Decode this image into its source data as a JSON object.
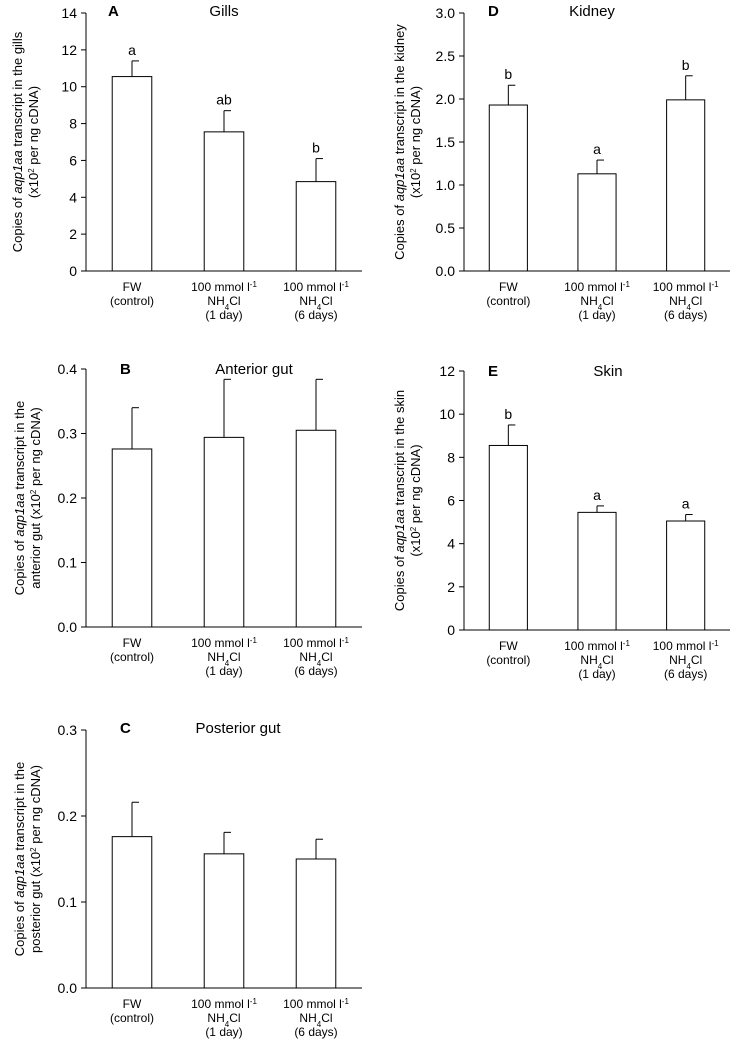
{
  "chart_data": [
    {
      "panel": "A",
      "type": "bar",
      "title": "Gills",
      "ylabel_lines": [
        [
          {
            "t": "Copies of "
          },
          {
            "t": "aqp1aa",
            "i": true
          },
          {
            "t": "  transcript in the gills"
          }
        ],
        [
          {
            "t": "(x10"
          },
          {
            "t": "2",
            "sup": true
          },
          {
            "t": "  per ng cDNA)"
          }
        ]
      ],
      "categories": [
        [
          [
            {
              "t": "FW"
            }
          ],
          [
            {
              "t": "(control)"
            }
          ]
        ],
        [
          [
            {
              "t": "100 mmol l"
            },
            {
              "t": "-1",
              "sup": true
            }
          ],
          [
            {
              "t": "NH"
            },
            {
              "t": "4",
              "sub": true
            },
            {
              "t": "Cl"
            }
          ],
          [
            {
              "t": "(1 day)"
            }
          ]
        ],
        [
          [
            {
              "t": "100 mmol l"
            },
            {
              "t": "-1",
              "sup": true
            }
          ],
          [
            {
              "t": "NH"
            },
            {
              "t": "4",
              "sub": true
            },
            {
              "t": "Cl"
            }
          ],
          [
            {
              "t": "(6 days)"
            }
          ]
        ]
      ],
      "values": [
        10.55,
        7.55,
        4.85
      ],
      "errors": [
        0.85,
        1.15,
        1.25
      ],
      "significance": [
        "a",
        "ab",
        "b"
      ],
      "ylim": [
        0,
        14
      ],
      "yticks": [
        "0",
        "2",
        "4",
        "6",
        "8",
        "10",
        "12",
        "14"
      ]
    },
    {
      "panel": "D",
      "type": "bar",
      "title": "Kidney",
      "ylabel_lines": [
        [
          {
            "t": "Copies of "
          },
          {
            "t": "aqp1aa",
            "i": true
          },
          {
            "t": "  transcript in the kidney"
          }
        ],
        [
          {
            "t": "(x10"
          },
          {
            "t": "2",
            "sup": true
          },
          {
            "t": "  per ng cDNA)"
          }
        ]
      ],
      "categories": [
        [
          [
            {
              "t": "FW"
            }
          ],
          [
            {
              "t": "(control)"
            }
          ]
        ],
        [
          [
            {
              "t": "100 mmol l"
            },
            {
              "t": "-1",
              "sup": true
            }
          ],
          [
            {
              "t": "NH"
            },
            {
              "t": "4",
              "sub": true
            },
            {
              "t": "Cl"
            }
          ],
          [
            {
              "t": "(1 day)"
            }
          ]
        ],
        [
          [
            {
              "t": "100 mmol l"
            },
            {
              "t": "-1",
              "sup": true
            }
          ],
          [
            {
              "t": "NH"
            },
            {
              "t": "4",
              "sub": true
            },
            {
              "t": "Cl"
            }
          ],
          [
            {
              "t": "(6 days)"
            }
          ]
        ]
      ],
      "values": [
        1.93,
        1.13,
        1.99
      ],
      "errors": [
        0.23,
        0.16,
        0.28
      ],
      "significance": [
        "b",
        "a",
        "b"
      ],
      "ylim": [
        0,
        3.0
      ],
      "yticks": [
        "0.0",
        "0.5",
        "1.0",
        "1.5",
        "2.0",
        "2.5",
        "3.0"
      ]
    },
    {
      "panel": "B",
      "type": "bar",
      "title": "Anterior gut",
      "ylabel_lines": [
        [
          {
            "t": "Copies of "
          },
          {
            "t": "aqp1aa",
            "i": true
          },
          {
            "t": "  transcript in the"
          }
        ],
        [
          {
            "t": "anterior gut  (x10"
          },
          {
            "t": "2",
            "sup": true
          },
          {
            "t": "  per ng cDNA)"
          }
        ]
      ],
      "categories": [
        [
          [
            {
              "t": "FW"
            }
          ],
          [
            {
              "t": "(control)"
            }
          ]
        ],
        [
          [
            {
              "t": "100 mmol l"
            },
            {
              "t": "-1",
              "sup": true
            }
          ],
          [
            {
              "t": "NH"
            },
            {
              "t": "4",
              "sub": true
            },
            {
              "t": "Cl"
            }
          ],
          [
            {
              "t": "(1 day)"
            }
          ]
        ],
        [
          [
            {
              "t": "100 mmol l"
            },
            {
              "t": "-1",
              "sup": true
            }
          ],
          [
            {
              "t": "NH"
            },
            {
              "t": "4",
              "sub": true
            },
            {
              "t": "Cl"
            }
          ],
          [
            {
              "t": "(6 days)"
            }
          ]
        ]
      ],
      "values": [
        0.276,
        0.294,
        0.305
      ],
      "errors": [
        0.064,
        0.09,
        0.079
      ],
      "significance": [
        "",
        "",
        ""
      ],
      "ylim": [
        0,
        0.4
      ],
      "yticks": [
        "0.0",
        "0.1",
        "0.2",
        "0.3",
        "0.4"
      ]
    },
    {
      "panel": "E",
      "type": "bar",
      "title": "Skin",
      "ylabel_lines": [
        [
          {
            "t": "Copies of "
          },
          {
            "t": "aqp1aa",
            "i": true
          },
          {
            "t": "  transcript in the skin"
          }
        ],
        [
          {
            "t": "(x10"
          },
          {
            "t": "2",
            "sup": true
          },
          {
            "t": "  per ng cDNA)"
          }
        ]
      ],
      "categories": [
        [
          [
            {
              "t": "FW"
            }
          ],
          [
            {
              "t": "(control)"
            }
          ]
        ],
        [
          [
            {
              "t": "100 mmol l"
            },
            {
              "t": "-1",
              "sup": true
            }
          ],
          [
            {
              "t": "NH"
            },
            {
              "t": "4",
              "sub": true
            },
            {
              "t": "Cl"
            }
          ],
          [
            {
              "t": "(1 day)"
            }
          ]
        ],
        [
          [
            {
              "t": "100 mmol l"
            },
            {
              "t": "-1",
              "sup": true
            }
          ],
          [
            {
              "t": "NH"
            },
            {
              "t": "4",
              "sub": true
            },
            {
              "t": "Cl"
            }
          ],
          [
            {
              "t": "(6 days)"
            }
          ]
        ]
      ],
      "values": [
        8.55,
        5.45,
        5.05
      ],
      "errors": [
        0.95,
        0.3,
        0.3
      ],
      "significance": [
        "b",
        "a",
        "a"
      ],
      "ylim": [
        0,
        12
      ],
      "yticks": [
        "0",
        "2",
        "4",
        "6",
        "8",
        "10",
        "12"
      ]
    },
    {
      "panel": "C",
      "type": "bar",
      "title": "Posterior gut",
      "ylabel_lines": [
        [
          {
            "t": "Copies of "
          },
          {
            "t": "aqp1aa",
            "i": true
          },
          {
            "t": " transcript in the"
          }
        ],
        [
          {
            "t": "posterior gut  (x10"
          },
          {
            "t": "2",
            "sup": true
          },
          {
            "t": "  per ng cDNA)"
          }
        ]
      ],
      "categories": [
        [
          [
            {
              "t": "FW"
            }
          ],
          [
            {
              "t": "(control)"
            }
          ]
        ],
        [
          [
            {
              "t": "100 mmol l"
            },
            {
              "t": "-1",
              "sup": true
            }
          ],
          [
            {
              "t": "NH"
            },
            {
              "t": "4",
              "sub": true
            },
            {
              "t": "Cl"
            }
          ],
          [
            {
              "t": "(1 day)"
            }
          ]
        ],
        [
          [
            {
              "t": "100 mmol l"
            },
            {
              "t": "-1",
              "sup": true
            }
          ],
          [
            {
              "t": "NH"
            },
            {
              "t": "4",
              "sub": true
            },
            {
              "t": "Cl"
            }
          ],
          [
            {
              "t": "(6 days)"
            }
          ]
        ]
      ],
      "values": [
        0.176,
        0.156,
        0.15
      ],
      "errors": [
        0.04,
        0.025,
        0.023
      ],
      "significance": [
        "",
        "",
        ""
      ],
      "ylim": [
        0,
        0.3
      ],
      "yticks": [
        "0.0",
        "0.1",
        "0.2",
        "0.3"
      ]
    }
  ]
}
